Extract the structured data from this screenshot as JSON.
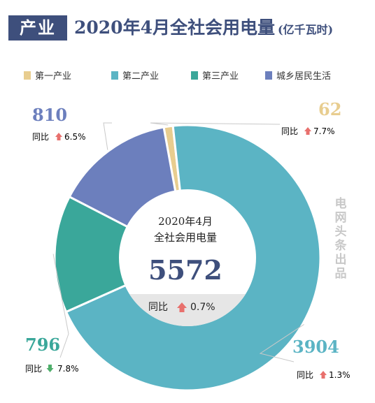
{
  "header": {
    "tag": "产业",
    "title": "2020年4月全社会用电量",
    "unit": "(亿千瓦时)"
  },
  "colors": {
    "primary": "#e8cd8f",
    "secondary": "#5bb4c4",
    "tertiary": "#3aa79a",
    "residential": "#6c7fbd",
    "up": "#e8706d",
    "down": "#4fae6b",
    "navy": "#3e4f7c"
  },
  "chart_data": {
    "type": "donut",
    "title": "2020年4月全社会用电量",
    "unit": "亿千瓦时",
    "legend_position": "top",
    "slices": [
      {
        "name": "第一产业",
        "value": 62,
        "yoy": "7.7%",
        "trend": "up",
        "color": "#e8cd8f"
      },
      {
        "name": "第二产业",
        "value": 3904,
        "yoy": "1.3%",
        "trend": "up",
        "color": "#5bb4c4"
      },
      {
        "name": "第三产业",
        "value": 796,
        "yoy": "7.8%",
        "trend": "down",
        "color": "#3aa79a"
      },
      {
        "name": "城乡居民生活",
        "value": 810,
        "yoy": "6.5%",
        "trend": "up",
        "color": "#6c7fbd"
      }
    ],
    "total": {
      "label_line1": "2020年4月",
      "label_line2": "全社会用电量",
      "value": "5572",
      "yoy": "0.7%",
      "trend": "up"
    }
  },
  "labels": {
    "yoy_prefix": "同比"
  },
  "watermark": "电网头条出品"
}
